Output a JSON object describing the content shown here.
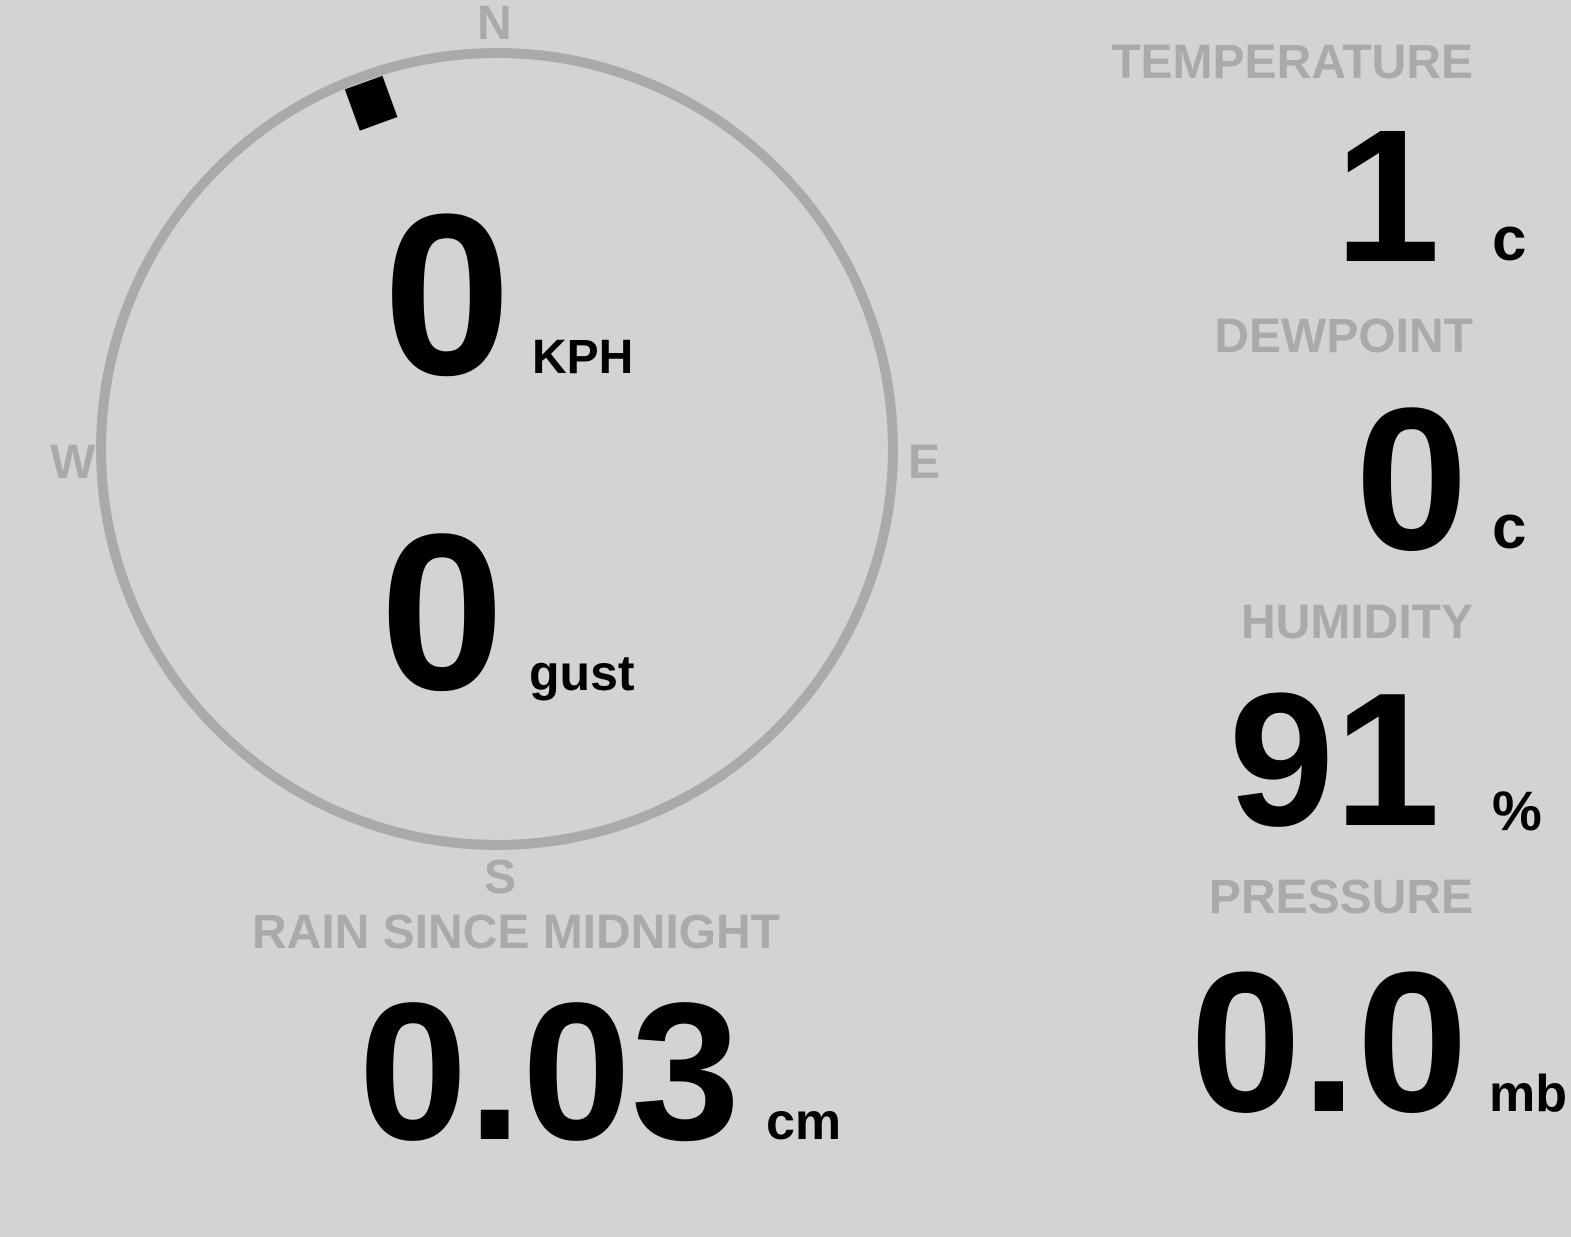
{
  "colors": {
    "background": "#d3d3d3",
    "label": "#aaaaaa",
    "value": "#000000",
    "compass_ring": "#aaaaaa",
    "wind_marker": "#000000"
  },
  "compass": {
    "north": "N",
    "south": "S",
    "east": "E",
    "west": "W",
    "wind_direction_deg": 340
  },
  "wind": {
    "speed": "0",
    "speed_unit": "KPH",
    "gust": "0",
    "gust_unit": "gust"
  },
  "rain": {
    "label": "RAIN SINCE MIDNIGHT",
    "value": "0.03",
    "unit": "cm"
  },
  "temperature": {
    "label": "TEMPERATURE",
    "value": "1",
    "unit": "c"
  },
  "dewpoint": {
    "label": "DEWPOINT",
    "value": "0",
    "unit": "c"
  },
  "humidity": {
    "label": "HUMIDITY",
    "value": "91",
    "unit": "%"
  },
  "pressure": {
    "label": "PRESSURE",
    "value": "0.0",
    "unit": "mb"
  }
}
